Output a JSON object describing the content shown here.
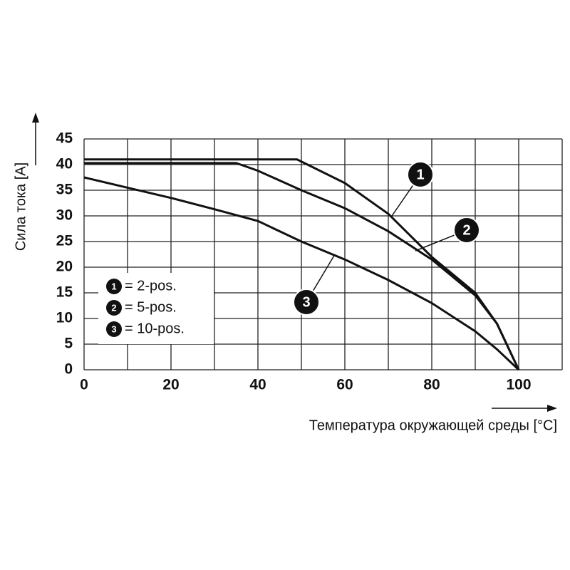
{
  "chart_data": {
    "type": "line",
    "y_label": "Сила тока [A]",
    "x_label": "Температура окружающей среды [°C]",
    "xlim": [
      0,
      110
    ],
    "xticks": [
      0,
      20,
      40,
      60,
      80,
      100
    ],
    "x_grid": [
      0,
      10,
      20,
      30,
      40,
      50,
      60,
      70,
      80,
      90,
      100,
      110
    ],
    "ylim": [
      0,
      45
    ],
    "yticks": [
      0,
      5,
      10,
      15,
      20,
      25,
      30,
      35,
      40,
      45
    ],
    "grid": true,
    "series": [
      {
        "marker_label": "1",
        "name": "= 2-pos.",
        "color": "#111111",
        "x": [
          0,
          49,
          60,
          70,
          80,
          90,
          95,
          100
        ],
        "values": [
          41,
          41,
          36.4,
          30.4,
          22,
          15,
          9,
          0
        ]
      },
      {
        "marker_label": "2",
        "name": "= 5-pos.",
        "color": "#111111",
        "x": [
          0,
          35,
          40,
          50,
          60,
          70,
          80,
          90,
          95,
          100
        ],
        "values": [
          40.3,
          40.3,
          38.8,
          35,
          31.5,
          27,
          21.5,
          14.5,
          9,
          0
        ]
      },
      {
        "marker_label": "3",
        "name": "= 10-pos.",
        "color": "#111111",
        "x": [
          0,
          10,
          20,
          30,
          40,
          50,
          60,
          70,
          80,
          90,
          95,
          100
        ],
        "values": [
          37.5,
          35.5,
          33.5,
          31.3,
          29,
          25,
          21.5,
          17.5,
          13,
          7.5,
          4,
          0
        ]
      }
    ]
  }
}
